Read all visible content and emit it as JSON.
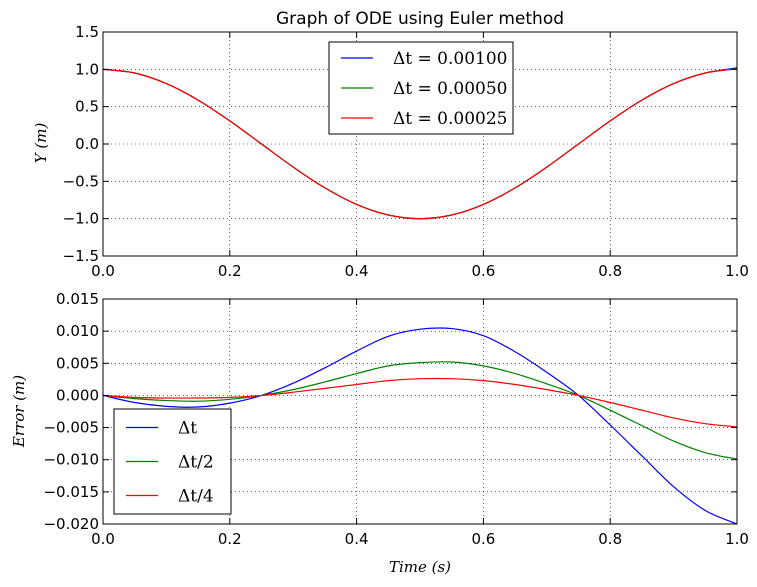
{
  "chart_data": [
    {
      "type": "line",
      "title": "Graph of ODE using Euler method",
      "xlabel": "",
      "ylabel": "Y (m)",
      "xlim": [
        0.0,
        1.0
      ],
      "ylim": [
        -1.5,
        1.5
      ],
      "xticks": [
        "0.0",
        "0.2",
        "0.4",
        "0.6",
        "0.8",
        "1.0"
      ],
      "yticks": [
        "−1.5",
        "−1.0",
        "−0.5",
        "0.0",
        "0.5",
        "1.0",
        "1.5"
      ],
      "grid": true,
      "legend_position": "top-center",
      "x": [
        0.0,
        0.05,
        0.1,
        0.15,
        0.2,
        0.25,
        0.3,
        0.35,
        0.4,
        0.45,
        0.5,
        0.55,
        0.6,
        0.65,
        0.7,
        0.75,
        0.8,
        0.85,
        0.9,
        0.95,
        1.0
      ],
      "series": [
        {
          "name": "Δt = 0.00100",
          "color": "#0000ff",
          "values": [
            1.0,
            0.951,
            0.809,
            0.588,
            0.309,
            0.0,
            -0.309,
            -0.588,
            -0.809,
            -0.951,
            -1.0,
            -0.951,
            -0.809,
            -0.588,
            -0.309,
            0.0,
            0.309,
            0.588,
            0.809,
            0.951,
            1.02
          ]
        },
        {
          "name": "Δt = 0.00050",
          "color": "#008000",
          "values": [
            1.0,
            0.951,
            0.809,
            0.588,
            0.309,
            0.0,
            -0.309,
            -0.588,
            -0.809,
            -0.951,
            -1.0,
            -0.951,
            -0.809,
            -0.588,
            -0.309,
            0.0,
            0.309,
            0.588,
            0.809,
            0.951,
            1.01
          ]
        },
        {
          "name": "Δt = 0.00025",
          "color": "#ff0000",
          "values": [
            1.0,
            0.951,
            0.809,
            0.588,
            0.309,
            0.0,
            -0.309,
            -0.588,
            -0.809,
            -0.951,
            -1.0,
            -0.951,
            -0.809,
            -0.588,
            -0.309,
            0.0,
            0.309,
            0.588,
            0.809,
            0.951,
            1.005
          ]
        }
      ]
    },
    {
      "type": "line",
      "title": "",
      "xlabel": "Time (s)",
      "ylabel": "Error (m)",
      "xlim": [
        0.0,
        1.0
      ],
      "ylim": [
        -0.02,
        0.015
      ],
      "xticks": [
        "0.0",
        "0.2",
        "0.4",
        "0.6",
        "0.8",
        "1.0"
      ],
      "yticks": [
        "−0.020",
        "−0.015",
        "−0.010",
        "−0.005",
        "0.000",
        "0.005",
        "0.010",
        "0.015"
      ],
      "grid": true,
      "legend_position": "lower-left",
      "x": [
        0.0,
        0.05,
        0.1,
        0.15,
        0.2,
        0.25,
        0.3,
        0.35,
        0.4,
        0.45,
        0.5,
        0.55,
        0.6,
        0.65,
        0.7,
        0.75,
        0.8,
        0.85,
        0.9,
        0.95,
        1.0
      ],
      "series": [
        {
          "name": "Δt",
          "color": "#0000ff",
          "values": [
            0.0,
            -0.0011,
            -0.0017,
            -0.0018,
            -0.0012,
            0.0,
            0.0019,
            0.0043,
            0.0069,
            0.0092,
            0.0103,
            0.0104,
            0.0093,
            0.0068,
            0.0036,
            0.0,
            -0.0046,
            -0.0094,
            -0.0142,
            -0.0179,
            -0.02
          ]
        },
        {
          "name": "Δt/2",
          "color": "#008000",
          "values": [
            0.0,
            -0.0005,
            -0.0008,
            -0.0009,
            -0.0006,
            0.0,
            0.0009,
            0.0021,
            0.0034,
            0.0046,
            0.0051,
            0.0052,
            0.0046,
            0.0034,
            0.0018,
            0.0,
            -0.0023,
            -0.0047,
            -0.0071,
            -0.0089,
            -0.0099
          ]
        },
        {
          "name": "Δt/4",
          "color": "#ff0000",
          "values": [
            0.0,
            -0.0003,
            -0.0004,
            -0.0004,
            -0.0003,
            0.0,
            0.0005,
            0.0011,
            0.0017,
            0.0023,
            0.0026,
            0.0026,
            0.0023,
            0.0017,
            0.0009,
            0.0,
            -0.0011,
            -0.0023,
            -0.0035,
            -0.0044,
            -0.0049
          ]
        }
      ]
    }
  ]
}
